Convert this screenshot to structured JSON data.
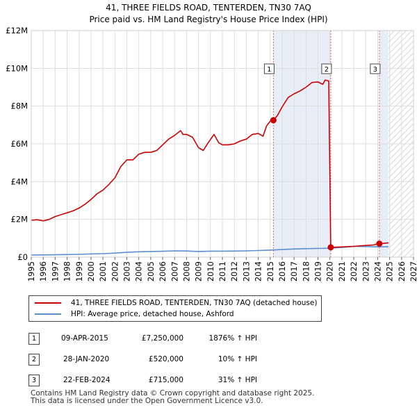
{
  "chart_data": {
    "type": "line",
    "title": "41, THREE FIELDS ROAD, TENTERDEN, TN30 7AQ",
    "subtitle": "Price paid vs. HM Land Registry's House Price Index (HPI)",
    "xlim": [
      1995,
      2027
    ],
    "ylim": [
      0,
      12000000
    ],
    "y_ticks": [
      {
        "value": 0,
        "label": "£0"
      },
      {
        "value": 2000000,
        "label": "£2M"
      },
      {
        "value": 4000000,
        "label": "£4M"
      },
      {
        "value": 6000000,
        "label": "£6M"
      },
      {
        "value": 8000000,
        "label": "£8M"
      },
      {
        "value": 10000000,
        "label": "£10M"
      },
      {
        "value": 12000000,
        "label": "£12M"
      }
    ],
    "x_ticks": [
      "1995",
      "1996",
      "1997",
      "1998",
      "1999",
      "2000",
      "2001",
      "2002",
      "2003",
      "2004",
      "2005",
      "2006",
      "2007",
      "2008",
      "2009",
      "2010",
      "2011",
      "2012",
      "2013",
      "2014",
      "2015",
      "2016",
      "2017",
      "2018",
      "2019",
      "2020",
      "2021",
      "2022",
      "2023",
      "2024",
      "2025",
      "2026",
      "2027"
    ],
    "shaded_ranges": [
      [
        2015.27,
        2020.07
      ],
      [
        2024.14,
        2024.9
      ]
    ],
    "hatched_range": [
      2024.9,
      2027
    ],
    "series": [
      {
        "name": "41, THREE FIELDS ROAD, TENTERDEN, TN30 7AQ (detached house)",
        "color": "#cc0000",
        "points": [
          [
            1995.0,
            1950000
          ],
          [
            1995.5,
            1980000
          ],
          [
            1996.0,
            1920000
          ],
          [
            1996.5,
            2000000
          ],
          [
            1997.0,
            2150000
          ],
          [
            1997.5,
            2250000
          ],
          [
            1998.0,
            2350000
          ],
          [
            1998.5,
            2450000
          ],
          [
            1999.0,
            2600000
          ],
          [
            1999.5,
            2800000
          ],
          [
            2000.0,
            3050000
          ],
          [
            2000.5,
            3350000
          ],
          [
            2001.0,
            3550000
          ],
          [
            2001.5,
            3850000
          ],
          [
            2002.0,
            4200000
          ],
          [
            2002.5,
            4800000
          ],
          [
            2003.0,
            5150000
          ],
          [
            2003.5,
            5150000
          ],
          [
            2004.0,
            5450000
          ],
          [
            2004.5,
            5550000
          ],
          [
            2005.0,
            5550000
          ],
          [
            2005.5,
            5650000
          ],
          [
            2006.0,
            5950000
          ],
          [
            2006.5,
            6250000
          ],
          [
            2007.0,
            6450000
          ],
          [
            2007.5,
            6700000
          ],
          [
            2007.7,
            6500000
          ],
          [
            2008.0,
            6500000
          ],
          [
            2008.5,
            6350000
          ],
          [
            2009.0,
            5800000
          ],
          [
            2009.4,
            5650000
          ],
          [
            2009.8,
            6050000
          ],
          [
            2010.3,
            6500000
          ],
          [
            2010.7,
            6050000
          ],
          [
            2011.0,
            5950000
          ],
          [
            2011.5,
            5950000
          ],
          [
            2012.0,
            6000000
          ],
          [
            2012.5,
            6150000
          ],
          [
            2013.0,
            6250000
          ],
          [
            2013.5,
            6500000
          ],
          [
            2014.0,
            6550000
          ],
          [
            2014.4,
            6400000
          ],
          [
            2014.7,
            6950000
          ],
          [
            2015.0,
            7200000
          ],
          [
            2015.27,
            7250000
          ],
          [
            2015.6,
            7500000
          ],
          [
            2016.0,
            7950000
          ],
          [
            2016.5,
            8450000
          ],
          [
            2017.0,
            8650000
          ],
          [
            2017.5,
            8800000
          ],
          [
            2018.0,
            9000000
          ],
          [
            2018.5,
            9250000
          ],
          [
            2019.0,
            9280000
          ],
          [
            2019.4,
            9150000
          ],
          [
            2019.6,
            9380000
          ],
          [
            2019.9,
            9330000
          ],
          [
            2020.07,
            520000
          ],
          [
            2021.0,
            540000
          ],
          [
            2022.0,
            570000
          ],
          [
            2023.0,
            620000
          ],
          [
            2023.6,
            640000
          ],
          [
            2024.14,
            715000
          ],
          [
            2024.5,
            730000
          ],
          [
            2024.9,
            760000
          ]
        ]
      },
      {
        "name": "HPI: Average price, detached house, Ashford",
        "color": "#5b8fd0",
        "points": [
          [
            1995.0,
            115000
          ],
          [
            1996.0,
            118000
          ],
          [
            1997.0,
            125000
          ],
          [
            1998.0,
            135000
          ],
          [
            1999.0,
            148000
          ],
          [
            2000.0,
            168000
          ],
          [
            2001.0,
            185000
          ],
          [
            2002.0,
            215000
          ],
          [
            2003.0,
            255000
          ],
          [
            2004.0,
            285000
          ],
          [
            2005.0,
            298000
          ],
          [
            2006.0,
            310000
          ],
          [
            2007.0,
            330000
          ],
          [
            2008.0,
            325000
          ],
          [
            2009.0,
            298000
          ],
          [
            2010.0,
            318000
          ],
          [
            2011.0,
            318000
          ],
          [
            2012.0,
            322000
          ],
          [
            2013.0,
            330000
          ],
          [
            2014.0,
            350000
          ],
          [
            2015.0,
            370000
          ],
          [
            2016.0,
            400000
          ],
          [
            2017.0,
            430000
          ],
          [
            2018.0,
            450000
          ],
          [
            2019.0,
            460000
          ],
          [
            2020.0,
            470000
          ],
          [
            2021.0,
            510000
          ],
          [
            2022.0,
            570000
          ],
          [
            2023.0,
            560000
          ],
          [
            2024.0,
            545000
          ],
          [
            2024.9,
            550000
          ]
        ]
      }
    ],
    "annotations": [
      {
        "label": "1",
        "x": 2015.27,
        "value": 7250000
      },
      {
        "label": "2",
        "x": 2020.07,
        "value": 520000
      },
      {
        "label": "3",
        "x": 2024.14,
        "value": 715000
      }
    ]
  },
  "transactions": [
    {
      "num": "1",
      "date": "09-APR-2015",
      "price": "£7,250,000",
      "hpi": "1876% ↑ HPI"
    },
    {
      "num": "2",
      "date": "28-JAN-2020",
      "price": "£520,000",
      "hpi": "10% ↑ HPI"
    },
    {
      "num": "3",
      "date": "22-FEB-2024",
      "price": "£715,000",
      "hpi": "31% ↑ HPI"
    }
  ],
  "footer": {
    "line1": "Contains HM Land Registry data © Crown copyright and database right 2025.",
    "line2": "This data is licensed under the Open Government Licence v3.0."
  }
}
